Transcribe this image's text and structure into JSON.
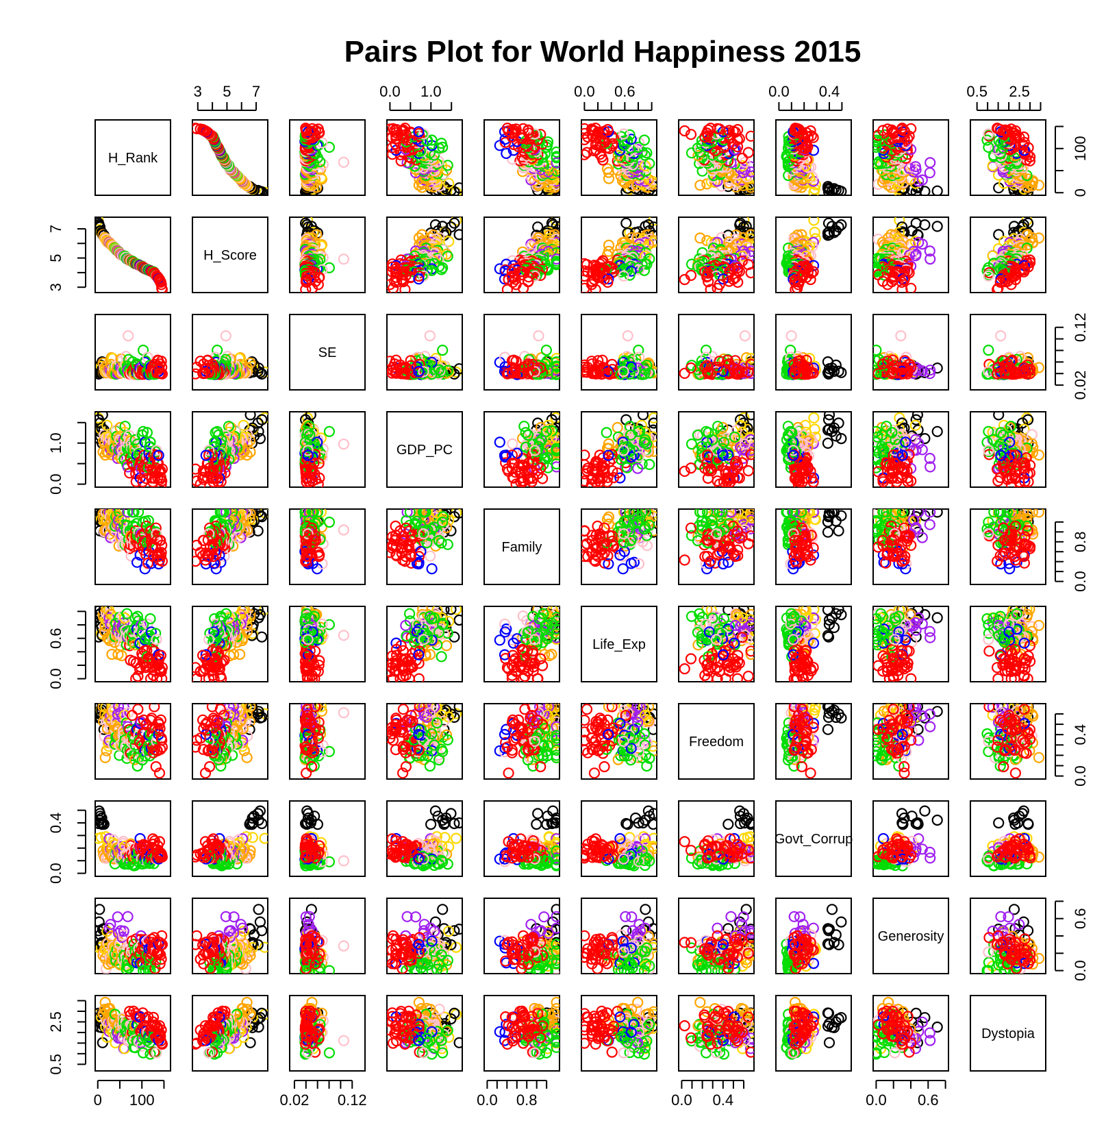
{
  "chart_data": {
    "type": "scatter",
    "title": "Pairs Plot for World Happiness 2015",
    "variables": [
      "H_Rank",
      "H_Score",
      "SE",
      "GDP_PC",
      "Family",
      "Life_Exp",
      "Freedom",
      "Govt_Corrup",
      "Generosity",
      "Dystopia"
    ],
    "ranges": {
      "H_Rank": [
        1,
        158
      ],
      "H_Score": [
        2.84,
        7.59
      ],
      "SE": [
        0.017,
        0.137
      ],
      "GDP_PC": [
        0.0,
        1.69
      ],
      "Family": [
        0.0,
        1.4
      ],
      "Life_Exp": [
        0.0,
        1.03
      ],
      "Freedom": [
        0.0,
        0.67
      ],
      "Govt_Corrup": [
        0.0,
        0.55
      ],
      "Generosity": [
        0.0,
        0.8
      ],
      "Dystopia": [
        0.33,
        3.6
      ]
    },
    "axis_ticks": {
      "H_Rank": {
        "side": "right",
        "ticks": [
          0,
          50,
          100,
          150
        ],
        "labels": [
          "0",
          "",
          "100",
          ""
        ]
      },
      "H_Score": {
        "side": "left",
        "ticks": [
          3,
          4,
          5,
          6,
          7
        ],
        "labels": [
          "3",
          "",
          "5",
          "",
          "7"
        ]
      },
      "SE": {
        "side": "right",
        "ticks": [
          0.02,
          0.04,
          0.06,
          0.08,
          0.1,
          0.12
        ],
        "labels": [
          "0.02",
          "",
          "",
          "",
          "",
          "0.12"
        ]
      },
      "GDP_PC": {
        "side": "left",
        "ticks": [
          0.0,
          0.5,
          1.0,
          1.5
        ],
        "labels": [
          "0.0",
          "",
          "1.0",
          ""
        ]
      },
      "Family": {
        "side": "right",
        "ticks": [
          0.0,
          0.2,
          0.4,
          0.6,
          0.8,
          1.0,
          1.2
        ],
        "labels": [
          "0.0",
          "",
          "",
          "",
          "0.8",
          "",
          ""
        ]
      },
      "Life_Exp": {
        "side": "left",
        "ticks": [
          0.0,
          0.2,
          0.4,
          0.6,
          0.8,
          1.0
        ],
        "labels": [
          "0.0",
          "",
          "",
          "0.6",
          "",
          ""
        ]
      },
      "Freedom": {
        "side": "right",
        "ticks": [
          0.0,
          0.1,
          0.2,
          0.3,
          0.4,
          0.5,
          0.6
        ],
        "labels": [
          "0.0",
          "",
          "",
          "",
          "0.4",
          "",
          ""
        ]
      },
      "Govt_Corrup": {
        "side": "left",
        "ticks": [
          0.0,
          0.1,
          0.2,
          0.3,
          0.4,
          0.5
        ],
        "labels": [
          "0.0",
          "",
          "",
          "",
          "0.4",
          ""
        ]
      },
      "Generosity": {
        "side": "right",
        "ticks": [
          0.0,
          0.2,
          0.4,
          0.6,
          0.8
        ],
        "labels": [
          "0.0",
          "",
          "",
          "0.6",
          ""
        ]
      },
      "Dystopia": {
        "side": "left",
        "ticks": [
          0.5,
          1.0,
          1.5,
          2.0,
          2.5,
          3.0,
          3.5
        ],
        "labels": [
          "0.5",
          "",
          "",
          "",
          "2.5",
          "",
          ""
        ]
      }
    },
    "region_colors": [
      "#000000",
      "#FF0000",
      "#00DD00",
      "#0000FF",
      "#FFD700",
      "#A020F0",
      "#FFA500",
      "#FFC0CB"
    ],
    "regions": {
      "counts": [
        10,
        40,
        29,
        6,
        8,
        9,
        22,
        22
      ]
    },
    "grid": false,
    "legend": "none",
    "point_shape": "open-circle"
  }
}
